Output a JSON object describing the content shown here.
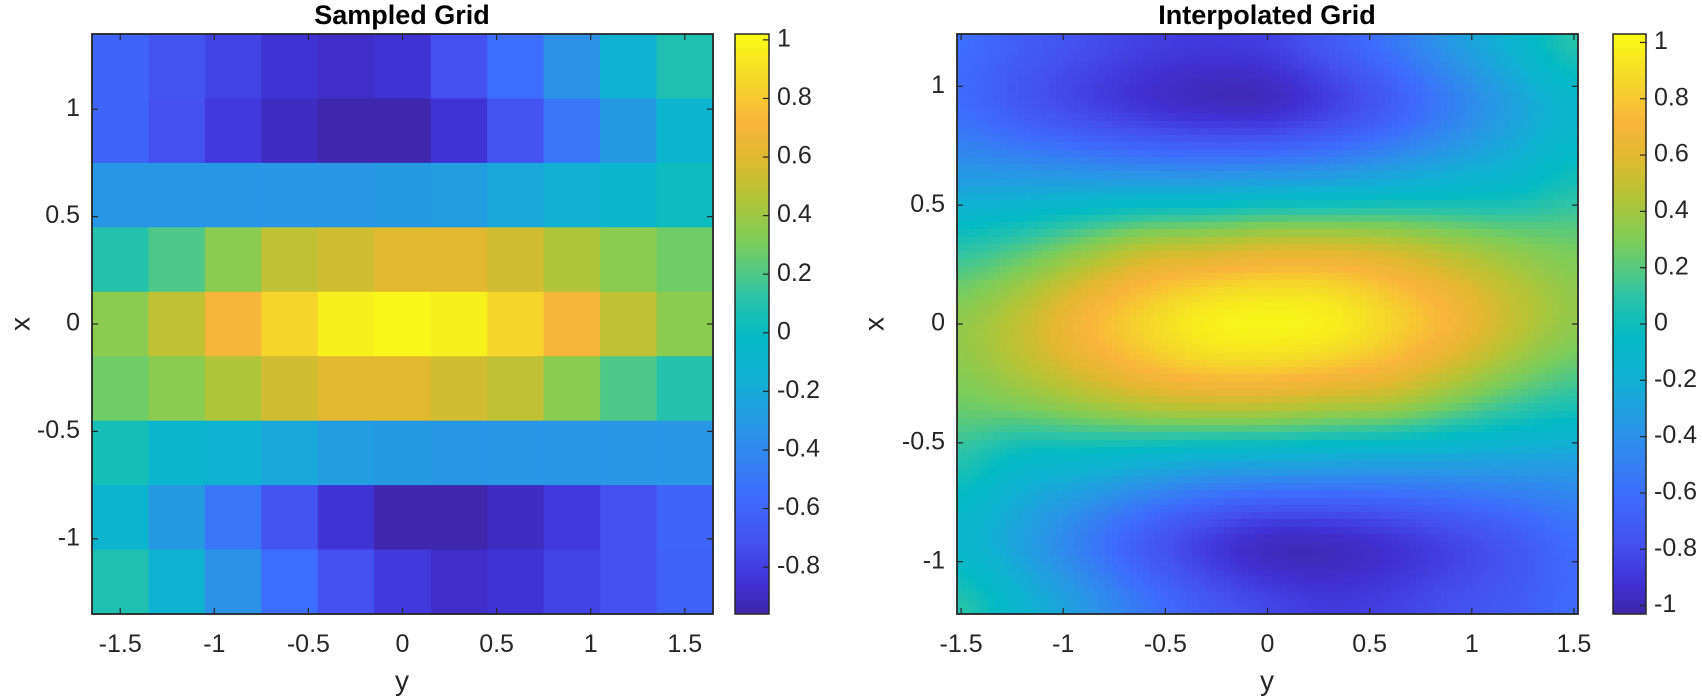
{
  "colormap": "parula",
  "chart_data": [
    {
      "type": "heatmap",
      "title": "Sampled Grid",
      "xlabel": "y",
      "ylabel": "x",
      "x": [
        -1.5,
        -1.2,
        -0.9,
        -0.6,
        -0.3,
        0,
        0.3,
        0.6,
        0.9,
        1.2,
        1.5
      ],
      "y": [
        1.2,
        0.9,
        0.6,
        0.3,
        0,
        -0.3,
        -0.6,
        -0.9,
        -1.2
      ],
      "values": [
        [
          -0.6,
          -0.7,
          -0.78,
          -0.85,
          -0.88,
          -0.85,
          -0.72,
          -0.55,
          -0.35,
          -0.15,
          0.08
        ],
        [
          -0.6,
          -0.72,
          -0.82,
          -0.9,
          -0.95,
          -0.95,
          -0.85,
          -0.7,
          -0.5,
          -0.3,
          -0.12
        ],
        [
          -0.32,
          -0.32,
          -0.32,
          -0.33,
          -0.33,
          -0.3,
          -0.28,
          -0.22,
          -0.16,
          -0.1,
          0.02
        ],
        [
          0.1,
          0.2,
          0.35,
          0.5,
          0.55,
          0.6,
          0.6,
          0.55,
          0.45,
          0.35,
          0.28
        ],
        [
          0.35,
          0.5,
          0.7,
          0.85,
          0.97,
          1.0,
          0.97,
          0.85,
          0.7,
          0.5,
          0.35
        ],
        [
          0.28,
          0.35,
          0.45,
          0.55,
          0.6,
          0.6,
          0.55,
          0.5,
          0.35,
          0.2,
          0.1
        ],
        [
          0.05,
          -0.1,
          -0.15,
          -0.22,
          -0.28,
          -0.3,
          -0.32,
          -0.33,
          -0.33,
          -0.33,
          -0.33
        ],
        [
          -0.12,
          -0.3,
          -0.5,
          -0.7,
          -0.85,
          -0.95,
          -0.95,
          -0.9,
          -0.82,
          -0.72,
          -0.6
        ],
        [
          0.08,
          -0.15,
          -0.35,
          -0.55,
          -0.72,
          -0.82,
          -0.88,
          -0.85,
          -0.78,
          -0.72,
          -0.62
        ]
      ],
      "xlim": [
        -1.65,
        1.65
      ],
      "ylim": [
        -1.35,
        1.35
      ],
      "xticks": [
        "-1.5",
        "-1",
        "-0.5",
        "0",
        "0.5",
        "1",
        "1.5"
      ],
      "yticks": [
        "-1",
        "-0.5",
        "0",
        "0.5",
        "1"
      ],
      "colorbar": {
        "clim": [
          -0.96,
          1.02
        ],
        "ticks": [
          "-0.8",
          "-0.6",
          "-0.4",
          "-0.2",
          "0",
          "0.2",
          "0.4",
          "0.6",
          "0.8",
          "1"
        ]
      }
    },
    {
      "type": "heatmap",
      "title": "Interpolated Grid",
      "xlabel": "y",
      "ylabel": "x",
      "interpolation": "cubic",
      "xlim": [
        -1.52,
        1.52
      ],
      "ylim": [
        -1.22,
        1.22
      ],
      "xticks": [
        "-1.5",
        "-1",
        "-0.5",
        "0",
        "0.5",
        "1",
        "1.5"
      ],
      "yticks": [
        "-1",
        "-0.5",
        "0",
        "0.5",
        "1"
      ],
      "colorbar": {
        "clim": [
          -1.03,
          1.03
        ],
        "ticks": [
          "-1",
          "-0.8",
          "-0.6",
          "-0.4",
          "-0.2",
          "0",
          "0.2",
          "0.4",
          "0.6",
          "0.8",
          "1"
        ]
      }
    }
  ]
}
